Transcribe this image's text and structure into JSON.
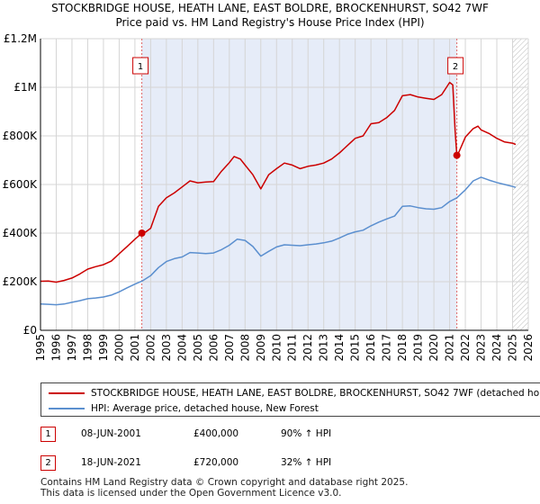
{
  "chart_data": {
    "type": "line",
    "title": "STOCKBRIDGE HOUSE, HEATH LANE, EAST BOLDRE, BROCKENHURST, SO42 7WF",
    "subtitle": "Price paid vs. HM Land Registry's House Price Index (HPI)",
    "xlabel": "",
    "ylabel": "",
    "xlim": [
      1995,
      2026
    ],
    "ylim": [
      0,
      1200000
    ],
    "x_ticks": [
      1995,
      1996,
      1997,
      1998,
      1999,
      2000,
      2001,
      2002,
      2003,
      2004,
      2005,
      2006,
      2007,
      2008,
      2009,
      2010,
      2011,
      2012,
      2013,
      2014,
      2015,
      2016,
      2017,
      2018,
      2019,
      2020,
      2021,
      2022,
      2023,
      2024,
      2025,
      2026
    ],
    "y_ticks": [
      {
        "value": 0,
        "label": "£0"
      },
      {
        "value": 200000,
        "label": "£200K"
      },
      {
        "value": 400000,
        "label": "£400K"
      },
      {
        "value": 600000,
        "label": "£600K"
      },
      {
        "value": 800000,
        "label": "£800K"
      },
      {
        "value": 1000000,
        "label": "£1M"
      },
      {
        "value": 1200000,
        "label": "£1.2M"
      }
    ],
    "grid": true,
    "ownership_shade": [
      2001.44,
      2021.46
    ],
    "future_hatch_from": 2025.0,
    "series": [
      {
        "name": "STOCKBRIDGE HOUSE, HEATH LANE, EAST BOLDRE, BROCKENHURST, SO42 7WF (detached ho",
        "color": "#cc0000",
        "points": [
          [
            1995.0,
            202000
          ],
          [
            1995.5,
            203000
          ],
          [
            1996.0,
            198000
          ],
          [
            1996.5,
            205000
          ],
          [
            1997.0,
            215000
          ],
          [
            1997.5,
            232000
          ],
          [
            1998.0,
            252000
          ],
          [
            1998.5,
            262000
          ],
          [
            1999.0,
            270000
          ],
          [
            1999.5,
            285000
          ],
          [
            2000.0,
            315000
          ],
          [
            2000.5,
            345000
          ],
          [
            2001.0,
            375000
          ],
          [
            2001.44,
            400000
          ],
          [
            2001.7,
            405000
          ],
          [
            2002.0,
            420000
          ],
          [
            2002.5,
            510000
          ],
          [
            2003.0,
            545000
          ],
          [
            2003.5,
            565000
          ],
          [
            2004.0,
            590000
          ],
          [
            2004.5,
            615000
          ],
          [
            2005.0,
            607000
          ],
          [
            2005.5,
            610000
          ],
          [
            2006.0,
            612000
          ],
          [
            2006.5,
            655000
          ],
          [
            2007.0,
            690000
          ],
          [
            2007.3,
            715000
          ],
          [
            2007.7,
            705000
          ],
          [
            2008.0,
            680000
          ],
          [
            2008.5,
            640000
          ],
          [
            2009.0,
            582000
          ],
          [
            2009.5,
            640000
          ],
          [
            2010.0,
            665000
          ],
          [
            2010.5,
            688000
          ],
          [
            2011.0,
            680000
          ],
          [
            2011.5,
            665000
          ],
          [
            2012.0,
            675000
          ],
          [
            2012.5,
            680000
          ],
          [
            2013.0,
            688000
          ],
          [
            2013.5,
            705000
          ],
          [
            2014.0,
            730000
          ],
          [
            2014.5,
            760000
          ],
          [
            2015.0,
            790000
          ],
          [
            2015.5,
            800000
          ],
          [
            2016.0,
            850000
          ],
          [
            2016.5,
            855000
          ],
          [
            2017.0,
            875000
          ],
          [
            2017.5,
            905000
          ],
          [
            2018.0,
            965000
          ],
          [
            2018.5,
            970000
          ],
          [
            2019.0,
            960000
          ],
          [
            2019.5,
            955000
          ],
          [
            2020.0,
            950000
          ],
          [
            2020.5,
            970000
          ],
          [
            2021.0,
            1020000
          ],
          [
            2021.2,
            1010000
          ],
          [
            2021.35,
            820000
          ],
          [
            2021.46,
            720000
          ],
          [
            2021.6,
            735000
          ],
          [
            2022.0,
            795000
          ],
          [
            2022.5,
            830000
          ],
          [
            2022.8,
            840000
          ],
          [
            2023.0,
            825000
          ],
          [
            2023.5,
            810000
          ],
          [
            2024.0,
            790000
          ],
          [
            2024.5,
            775000
          ],
          [
            2025.0,
            770000
          ],
          [
            2025.2,
            765000
          ]
        ]
      },
      {
        "name": "HPI: Average price, detached house, New Forest",
        "color": "#5b8fcf",
        "points": [
          [
            1995.0,
            108000
          ],
          [
            1995.5,
            107000
          ],
          [
            1996.0,
            105000
          ],
          [
            1996.5,
            108000
          ],
          [
            1997.0,
            115000
          ],
          [
            1997.5,
            122000
          ],
          [
            1998.0,
            130000
          ],
          [
            1998.5,
            133000
          ],
          [
            1999.0,
            137000
          ],
          [
            1999.5,
            145000
          ],
          [
            2000.0,
            158000
          ],
          [
            2000.5,
            175000
          ],
          [
            2001.0,
            190000
          ],
          [
            2001.5,
            204000
          ],
          [
            2002.0,
            225000
          ],
          [
            2002.5,
            258000
          ],
          [
            2003.0,
            283000
          ],
          [
            2003.5,
            295000
          ],
          [
            2004.0,
            302000
          ],
          [
            2004.5,
            320000
          ],
          [
            2005.0,
            318000
          ],
          [
            2005.5,
            316000
          ],
          [
            2006.0,
            318000
          ],
          [
            2006.5,
            332000
          ],
          [
            2007.0,
            350000
          ],
          [
            2007.5,
            375000
          ],
          [
            2008.0,
            370000
          ],
          [
            2008.5,
            345000
          ],
          [
            2009.0,
            305000
          ],
          [
            2009.5,
            325000
          ],
          [
            2010.0,
            343000
          ],
          [
            2010.5,
            352000
          ],
          [
            2011.0,
            350000
          ],
          [
            2011.5,
            348000
          ],
          [
            2012.0,
            352000
          ],
          [
            2012.5,
            355000
          ],
          [
            2013.0,
            360000
          ],
          [
            2013.5,
            367000
          ],
          [
            2014.0,
            380000
          ],
          [
            2014.5,
            395000
          ],
          [
            2015.0,
            405000
          ],
          [
            2015.5,
            412000
          ],
          [
            2016.0,
            430000
          ],
          [
            2016.5,
            445000
          ],
          [
            2017.0,
            458000
          ],
          [
            2017.5,
            470000
          ],
          [
            2018.0,
            510000
          ],
          [
            2018.5,
            512000
          ],
          [
            2019.0,
            505000
          ],
          [
            2019.5,
            500000
          ],
          [
            2020.0,
            498000
          ],
          [
            2020.5,
            505000
          ],
          [
            2021.0,
            530000
          ],
          [
            2021.46,
            545000
          ],
          [
            2022.0,
            578000
          ],
          [
            2022.5,
            615000
          ],
          [
            2023.0,
            630000
          ],
          [
            2023.5,
            618000
          ],
          [
            2024.0,
            608000
          ],
          [
            2024.5,
            600000
          ],
          [
            2025.0,
            592000
          ],
          [
            2025.2,
            588000
          ]
        ]
      }
    ],
    "annotations": [
      {
        "label": "1",
        "x": 2001.44,
        "y": 400000
      },
      {
        "label": "2",
        "x": 2021.46,
        "y": 720000
      }
    ]
  },
  "sales": [
    {
      "num": "1",
      "date": "08-JUN-2001",
      "price": "£400,000",
      "hpi": "90% ↑ HPI"
    },
    {
      "num": "2",
      "date": "18-JUN-2021",
      "price": "£720,000",
      "hpi": "32% ↑ HPI"
    }
  ],
  "footer": {
    "line1": "Contains HM Land Registry data © Crown copyright and database right 2025.",
    "line2": "This data is licensed under the Open Government Licence v3.0."
  }
}
